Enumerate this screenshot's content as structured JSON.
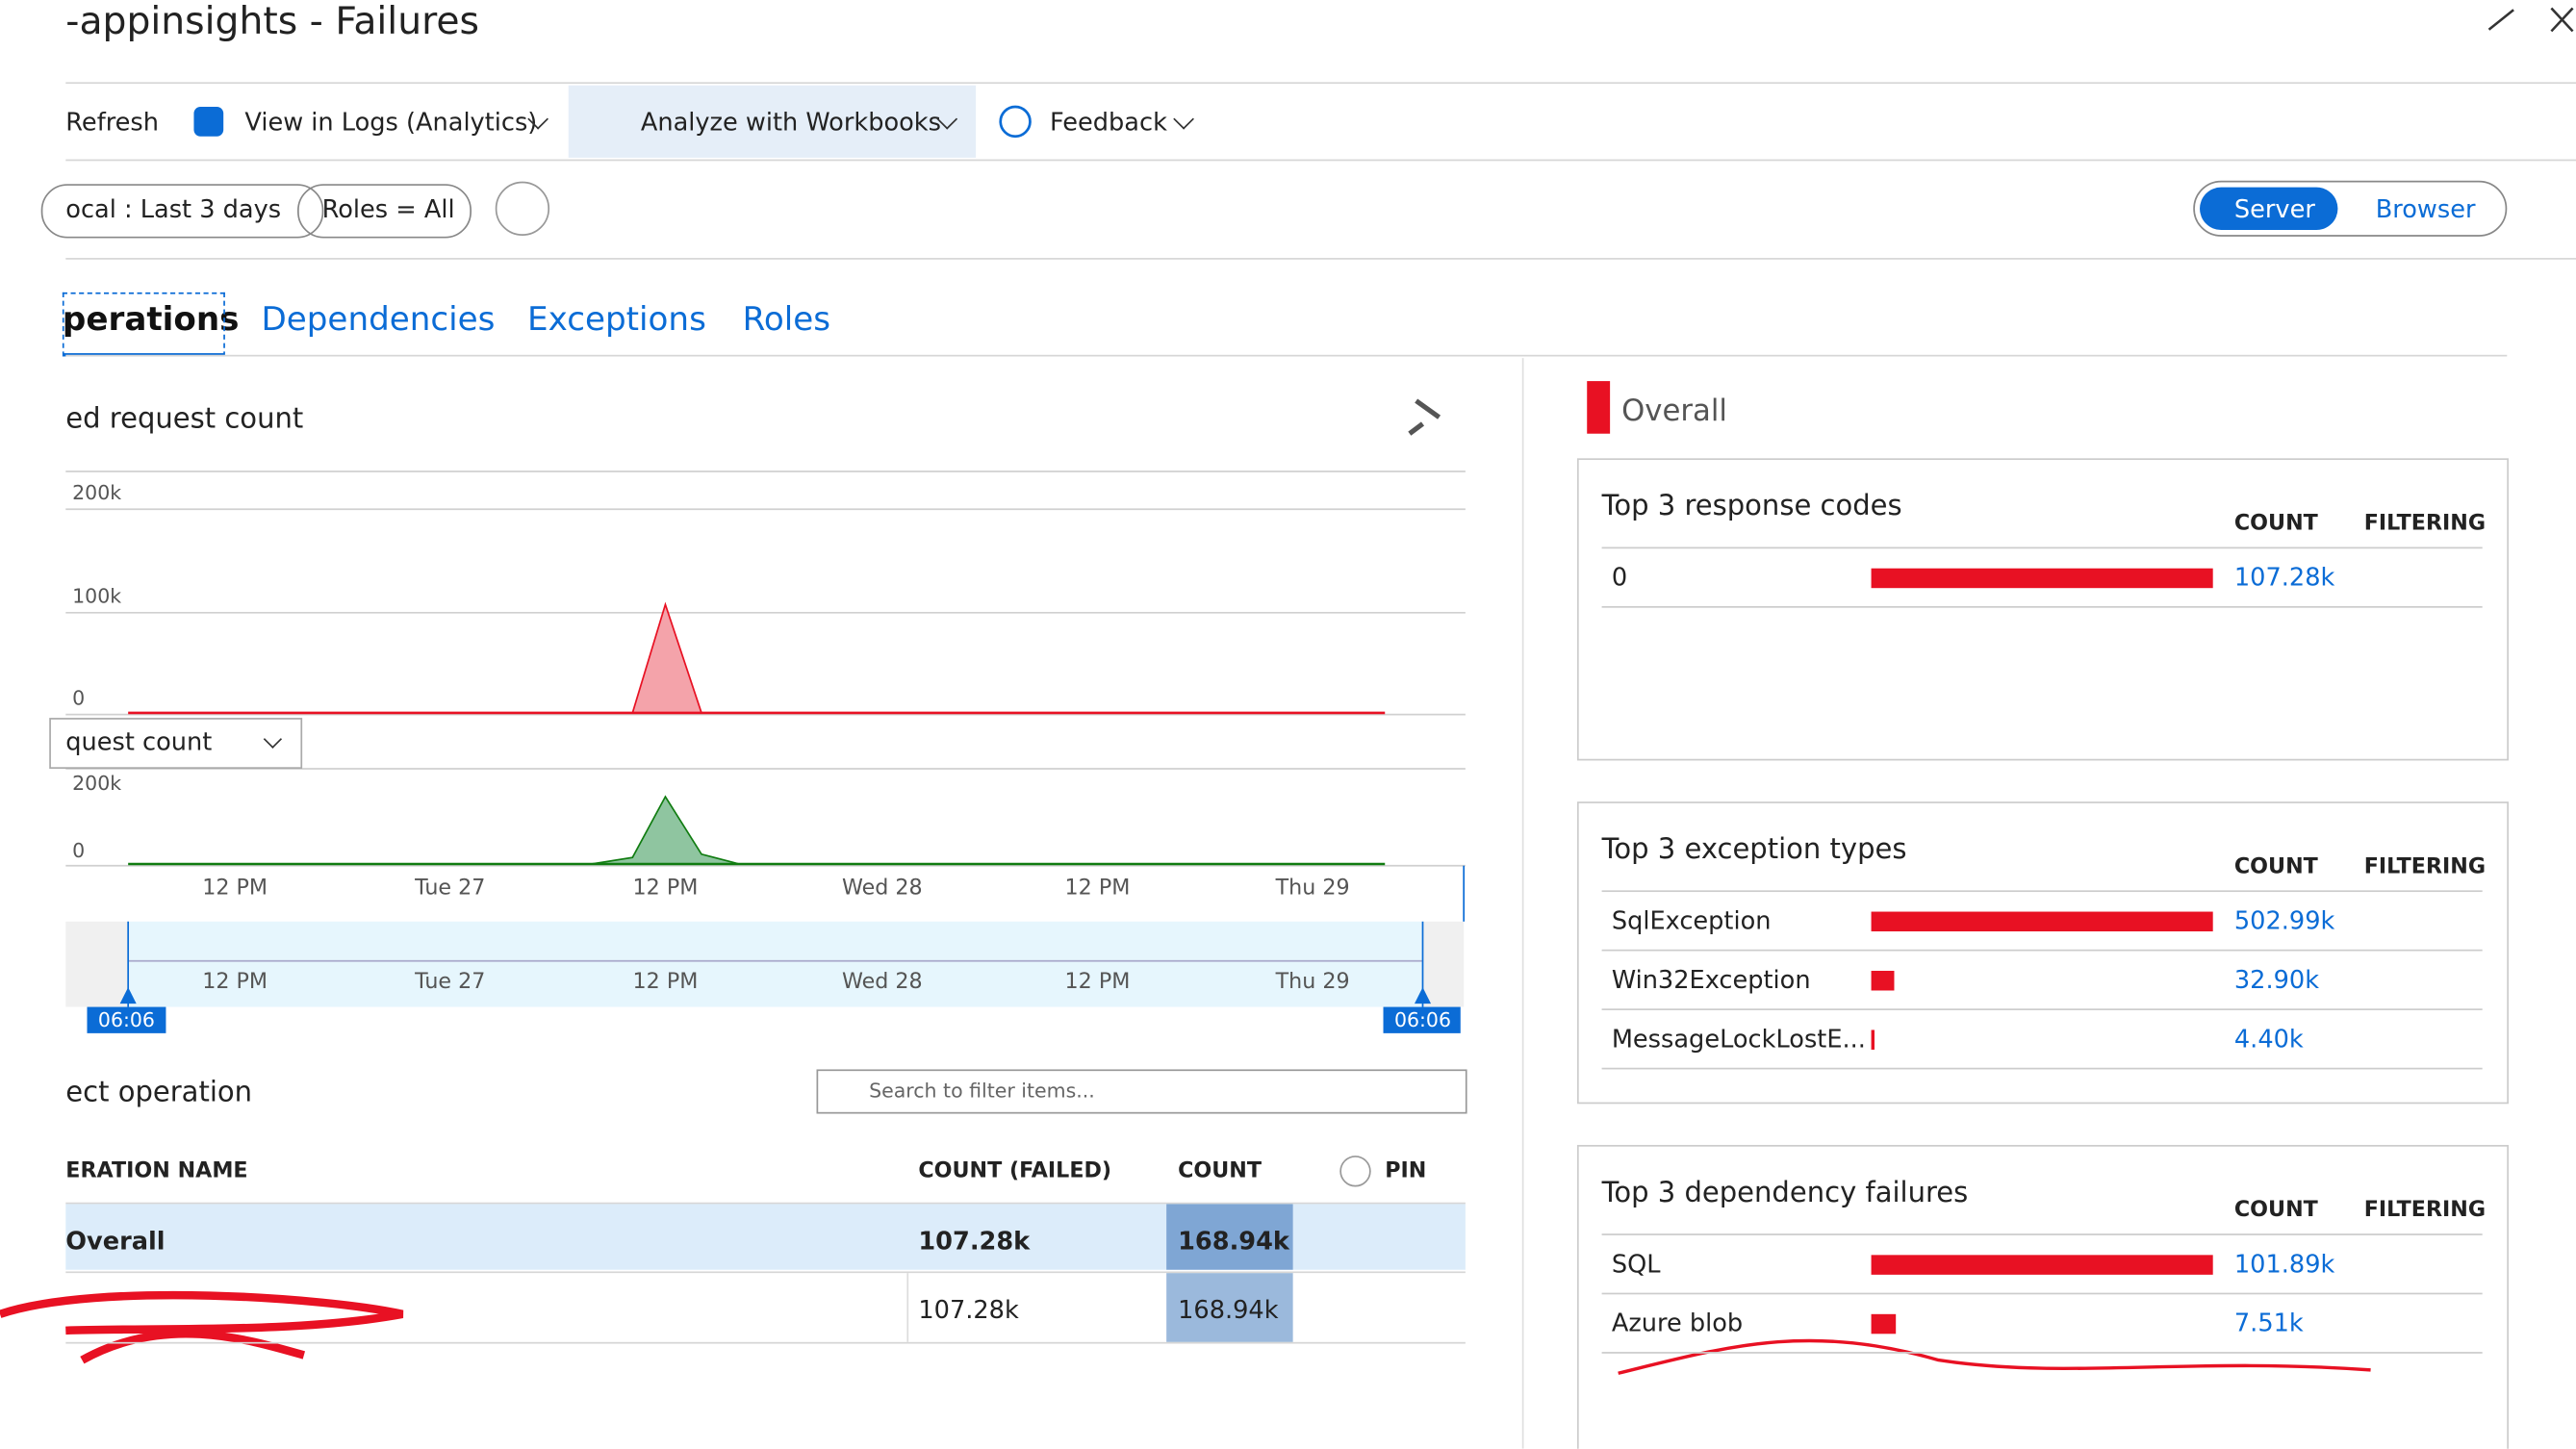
{
  "header": {
    "title": "-appinsights - Failures"
  },
  "toolbar": {
    "items": [
      "Refresh",
      "View in Logs (Analytics)",
      "Analyze with Workbooks",
      "Feedback"
    ]
  },
  "filters": {
    "time": "ocal : Last 3 days",
    "roles": "Roles = All"
  },
  "toggle": {
    "options": [
      "Server",
      "Browser"
    ]
  },
  "tabs": [
    "perations",
    "Dependencies",
    "Exceptions",
    "Roles"
  ],
  "chart": {
    "title": "ed request count",
    "upper_ticks": [
      "200k",
      "100k",
      "0"
    ],
    "selector": "quest count",
    "lower_ticks": [
      "200k",
      "0"
    ],
    "x_labels": [
      "12 PM",
      "Tue 27",
      "12 PM",
      "Wed 28",
      "12 PM",
      "Thu 29"
    ],
    "range_start": "06:06",
    "range_end": "06:06"
  },
  "operations": {
    "title": "ect operation",
    "search_placeholder": "Search to filter items...",
    "columns": [
      "ERATION NAME",
      "COUNT (FAILED)",
      "COUNT",
      "PIN"
    ],
    "rows": [
      {
        "name": "Overall",
        "failed": "107.28k",
        "count": "168.94k"
      },
      {
        "failed": "107.28k",
        "count": "168.94k"
      }
    ]
  },
  "overall": {
    "label": "Overall"
  },
  "panels": [
    {
      "title": "Top 3 response codes",
      "columns": [
        "COUNT",
        "FILTERING"
      ],
      "rows": [
        {
          "name": "0",
          "count": 107280,
          "label": "107.28k"
        }
      ]
    },
    {
      "title": "Top 3 exception types",
      "columns": [
        "COUNT",
        "FILTERING"
      ],
      "rows": [
        {
          "name": "SqlException",
          "count": 502990,
          "label": "502.99k"
        },
        {
          "name": "Win32Exception",
          "count": 32900,
          "label": "32.90k"
        },
        {
          "name": "MessageLockLostE...",
          "count": 4400,
          "label": "4.40k"
        }
      ]
    },
    {
      "title": "Top 3 dependency failures",
      "columns": [
        "COUNT",
        "FILTERING"
      ],
      "rows": [
        {
          "name": "SQL",
          "count": 101890,
          "label": "101.89k"
        },
        {
          "name": "Azure blob",
          "count": 7510,
          "label": "7.51k"
        }
      ]
    }
  ]
}
